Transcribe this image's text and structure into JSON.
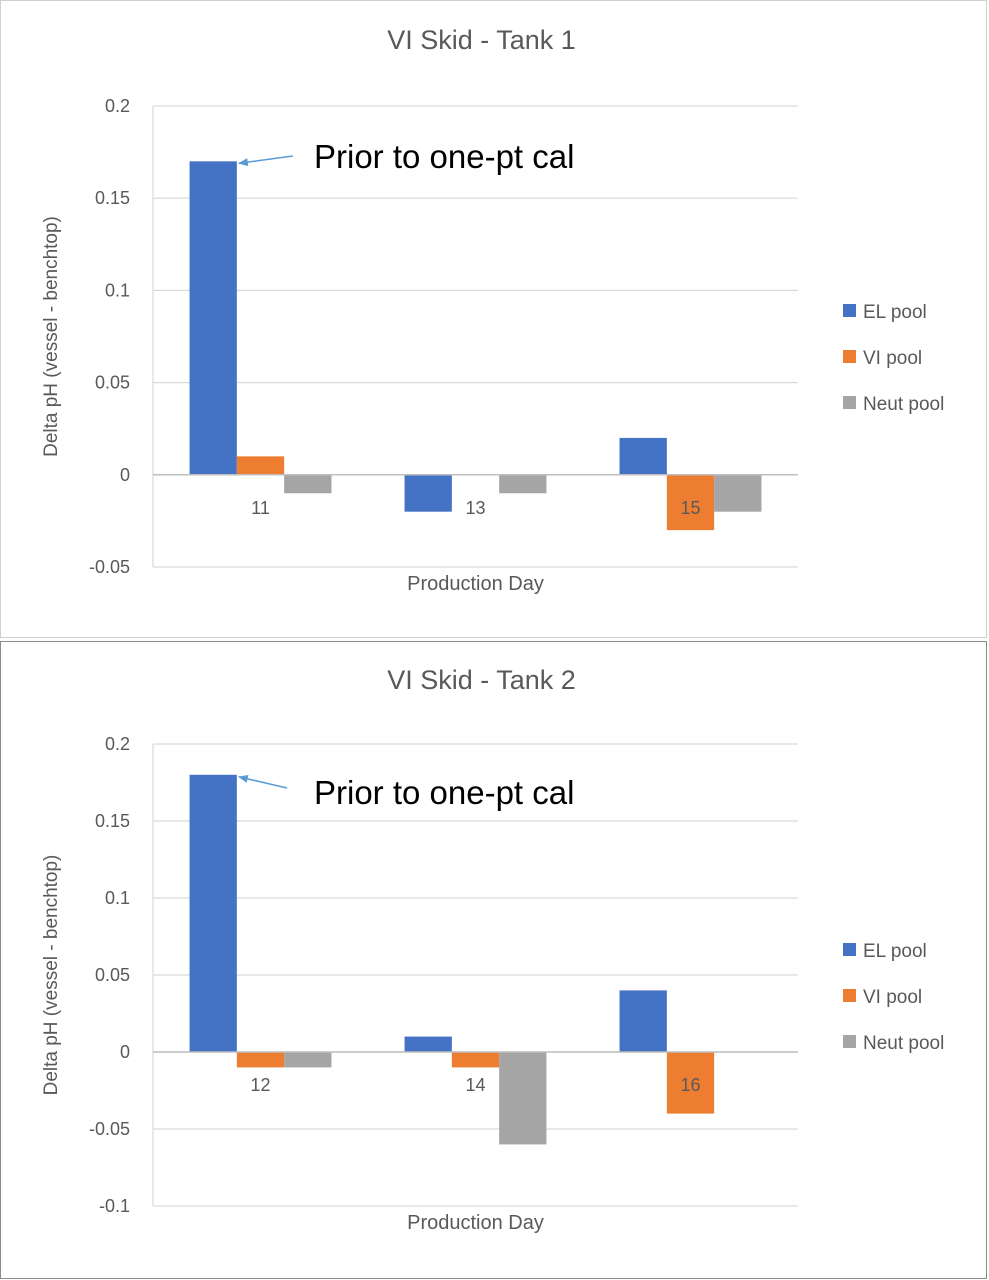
{
  "chart_data": [
    {
      "type": "bar",
      "title": "VI Skid - Tank 1",
      "xlabel": "Production Day",
      "ylabel": "Delta pH (vessel - benchtop)",
      "categories": [
        "11",
        "13",
        "15"
      ],
      "series": [
        {
          "name": "EL pool",
          "color": "#4472c4",
          "values": [
            0.17,
            -0.02,
            0.02
          ]
        },
        {
          "name": "VI pool",
          "color": "#ed7d31",
          "values": [
            0.01,
            0,
            -0.03
          ]
        },
        {
          "name": "Neut pool",
          "color": "#a5a5a5",
          "values": [
            -0.01,
            -0.01,
            -0.02
          ]
        }
      ],
      "ylim": [
        -0.05,
        0.2
      ],
      "yticks": [
        -0.05,
        0,
        0.05,
        0.1,
        0.15,
        0.2
      ],
      "ytick_labels": [
        "-0.05",
        "0",
        "0.05",
        "0.1",
        "0.15",
        "0.2"
      ],
      "grid": true,
      "legend": "right",
      "annotation": {
        "text": "Prior to one-pt cal",
        "category": "11",
        "series": "EL pool"
      }
    },
    {
      "type": "bar",
      "title": "VI Skid - Tank 2",
      "xlabel": "Production Day",
      "ylabel": "Delta pH (vessel - benchtop)",
      "categories": [
        "12",
        "14",
        "16"
      ],
      "series": [
        {
          "name": "EL pool",
          "color": "#4472c4",
          "values": [
            0.18,
            0.01,
            0.04
          ]
        },
        {
          "name": "VI pool",
          "color": "#ed7d31",
          "values": [
            -0.01,
            -0.01,
            -0.04
          ]
        },
        {
          "name": "Neut pool",
          "color": "#a5a5a5",
          "values": [
            -0.01,
            -0.06,
            0
          ]
        }
      ],
      "ylim": [
        -0.1,
        0.2
      ],
      "yticks": [
        -0.1,
        -0.05,
        0,
        0.05,
        0.1,
        0.15,
        0.2
      ],
      "ytick_labels": [
        "-0.1",
        "-0.05",
        "0",
        "0.05",
        "0.1",
        "0.15",
        "0.2"
      ],
      "grid": true,
      "legend": "right",
      "annotation": {
        "text": "Prior to one-pt cal",
        "category": "12",
        "series": "EL pool"
      }
    }
  ]
}
